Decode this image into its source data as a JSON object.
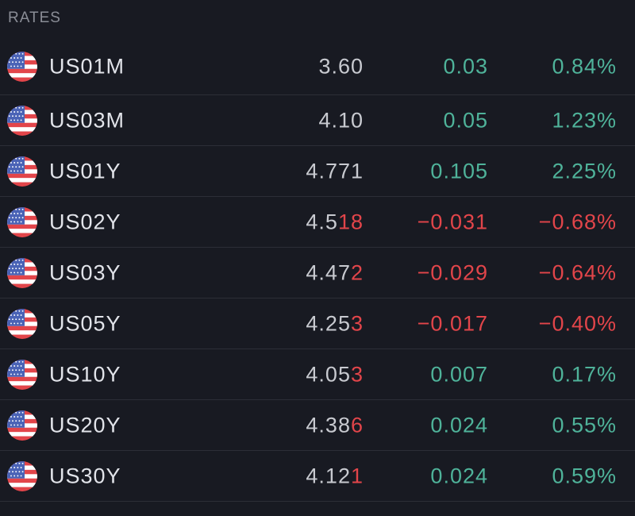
{
  "section": {
    "title": "RATES"
  },
  "colors": {
    "up": "#4fb39a",
    "down": "#e2454a",
    "price": "#c8cad0"
  },
  "rows": [
    {
      "icon": "us-flag-icon",
      "symbol": "US01M",
      "price_base": "3.60",
      "price_tick": "",
      "tick_dir": "",
      "change": "0.03",
      "pct": "0.84%",
      "dir": "up"
    },
    {
      "icon": "us-flag-icon",
      "symbol": "US03M",
      "price_base": "4.10",
      "price_tick": "",
      "tick_dir": "",
      "change": "0.05",
      "pct": "1.23%",
      "dir": "up"
    },
    {
      "icon": "us-flag-icon",
      "symbol": "US01Y",
      "price_base": "4.771",
      "price_tick": "",
      "tick_dir": "",
      "change": "0.105",
      "pct": "2.25%",
      "dir": "up"
    },
    {
      "icon": "us-flag-icon",
      "symbol": "US02Y",
      "price_base": "4.5",
      "price_tick": "18",
      "tick_dir": "down",
      "change": "−0.031",
      "pct": "−0.68%",
      "dir": "down"
    },
    {
      "icon": "us-flag-icon",
      "symbol": "US03Y",
      "price_base": "4.47",
      "price_tick": "2",
      "tick_dir": "down",
      "change": "−0.029",
      "pct": "−0.64%",
      "dir": "down"
    },
    {
      "icon": "us-flag-icon",
      "symbol": "US05Y",
      "price_base": "4.25",
      "price_tick": "3",
      "tick_dir": "down",
      "change": "−0.017",
      "pct": "−0.40%",
      "dir": "down"
    },
    {
      "icon": "us-flag-icon",
      "symbol": "US10Y",
      "price_base": "4.05",
      "price_tick": "3",
      "tick_dir": "down",
      "change": "0.007",
      "pct": "0.17%",
      "dir": "up"
    },
    {
      "icon": "us-flag-icon",
      "symbol": "US20Y",
      "price_base": "4.38",
      "price_tick": "6",
      "tick_dir": "down",
      "change": "0.024",
      "pct": "0.55%",
      "dir": "up"
    },
    {
      "icon": "us-flag-icon",
      "symbol": "US30Y",
      "price_base": "4.12",
      "price_tick": "1",
      "tick_dir": "down",
      "change": "0.024",
      "pct": "0.59%",
      "dir": "up"
    }
  ]
}
